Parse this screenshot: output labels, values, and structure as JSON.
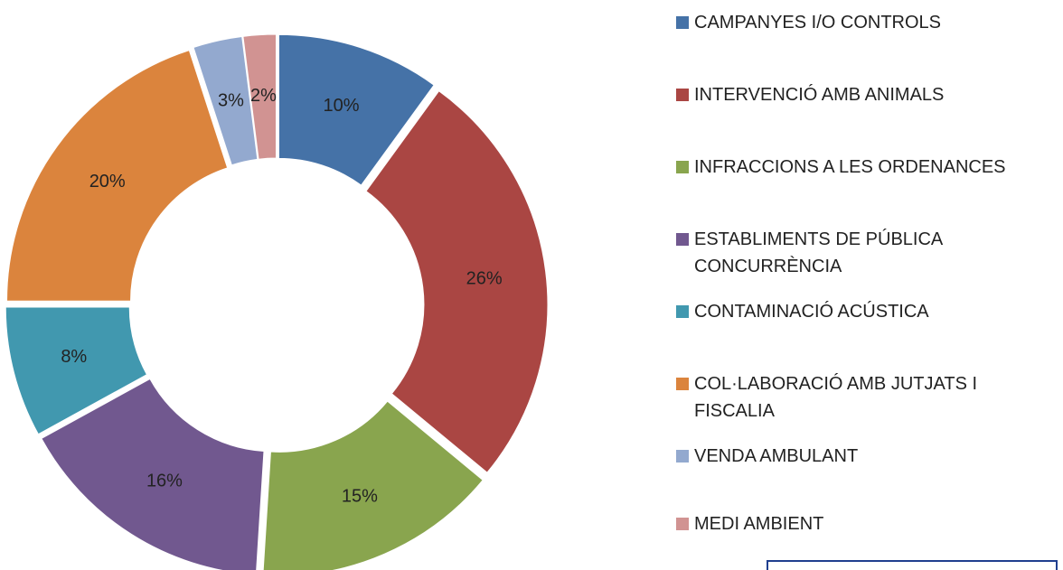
{
  "chart_data": {
    "type": "doughnut",
    "categories": [
      "CAMPANYES I/O CONTROLS",
      "INTERVENCIÓ AMB ANIMALS",
      "INFRACCIONS A LES ORDENANCES",
      "ESTABLIMENTS DE PÚBLICA CONCURRÈNCIA",
      "CONTAMINACIÓ ACÚSTICA",
      "COL·LABORACIÓ AMB JUTJATS I FISCALIA",
      "VENDA AMBULANT",
      "MEDI AMBIENT"
    ],
    "values": [
      10,
      26,
      15,
      16,
      8,
      20,
      3,
      2
    ],
    "value_labels": [
      "10%",
      "26%",
      "15%",
      "16%",
      "8%",
      "20%",
      "3%",
      "2%"
    ],
    "colors": [
      "#4572a7",
      "#aa4643",
      "#89a54e",
      "#71588f",
      "#4198af",
      "#db843d",
      "#93a9cf",
      "#d19392"
    ],
    "legend": "right"
  }
}
